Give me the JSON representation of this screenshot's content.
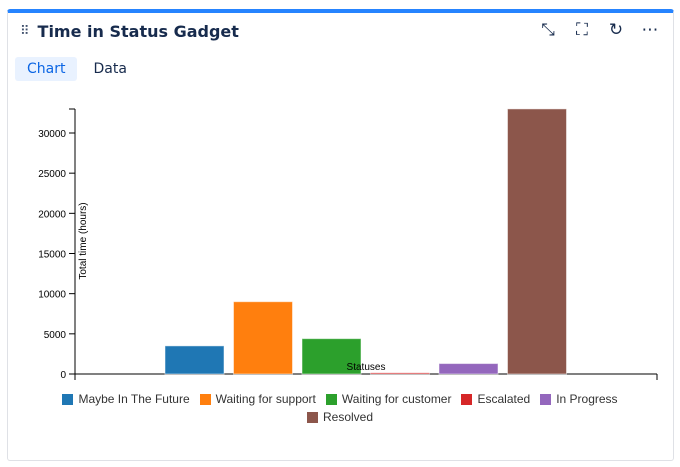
{
  "header": {
    "title": "Time in Status Gadget",
    "drag_icon": "drag-handle-icon",
    "actions": [
      "minimize-icon",
      "fullscreen-icon",
      "refresh-icon",
      "more-icon"
    ]
  },
  "tabs": [
    {
      "label": "Chart",
      "active": true
    },
    {
      "label": "Data",
      "active": false
    }
  ],
  "accent": "#2684ff",
  "chart_data": {
    "type": "bar",
    "categories": [
      "Maybe In The Future",
      "Waiting for support",
      "Waiting for customer",
      "Escalated",
      "In Progress",
      "Resolved"
    ],
    "values": [
      3500,
      9000,
      4400,
      150,
      1300,
      33000
    ],
    "colors": [
      "#1f77b4",
      "#ff7f0e",
      "#2ca02c",
      "#d62728",
      "#9467bd",
      "#8c564b"
    ],
    "xlabel": "Statuses",
    "ylabel": "Total time (hours)",
    "yticks": [
      "0",
      "5000",
      "10000",
      "15000",
      "20000",
      "25000",
      "30000"
    ],
    "ylim": [
      0,
      33000
    ],
    "grid": false,
    "legend": "bottom"
  }
}
